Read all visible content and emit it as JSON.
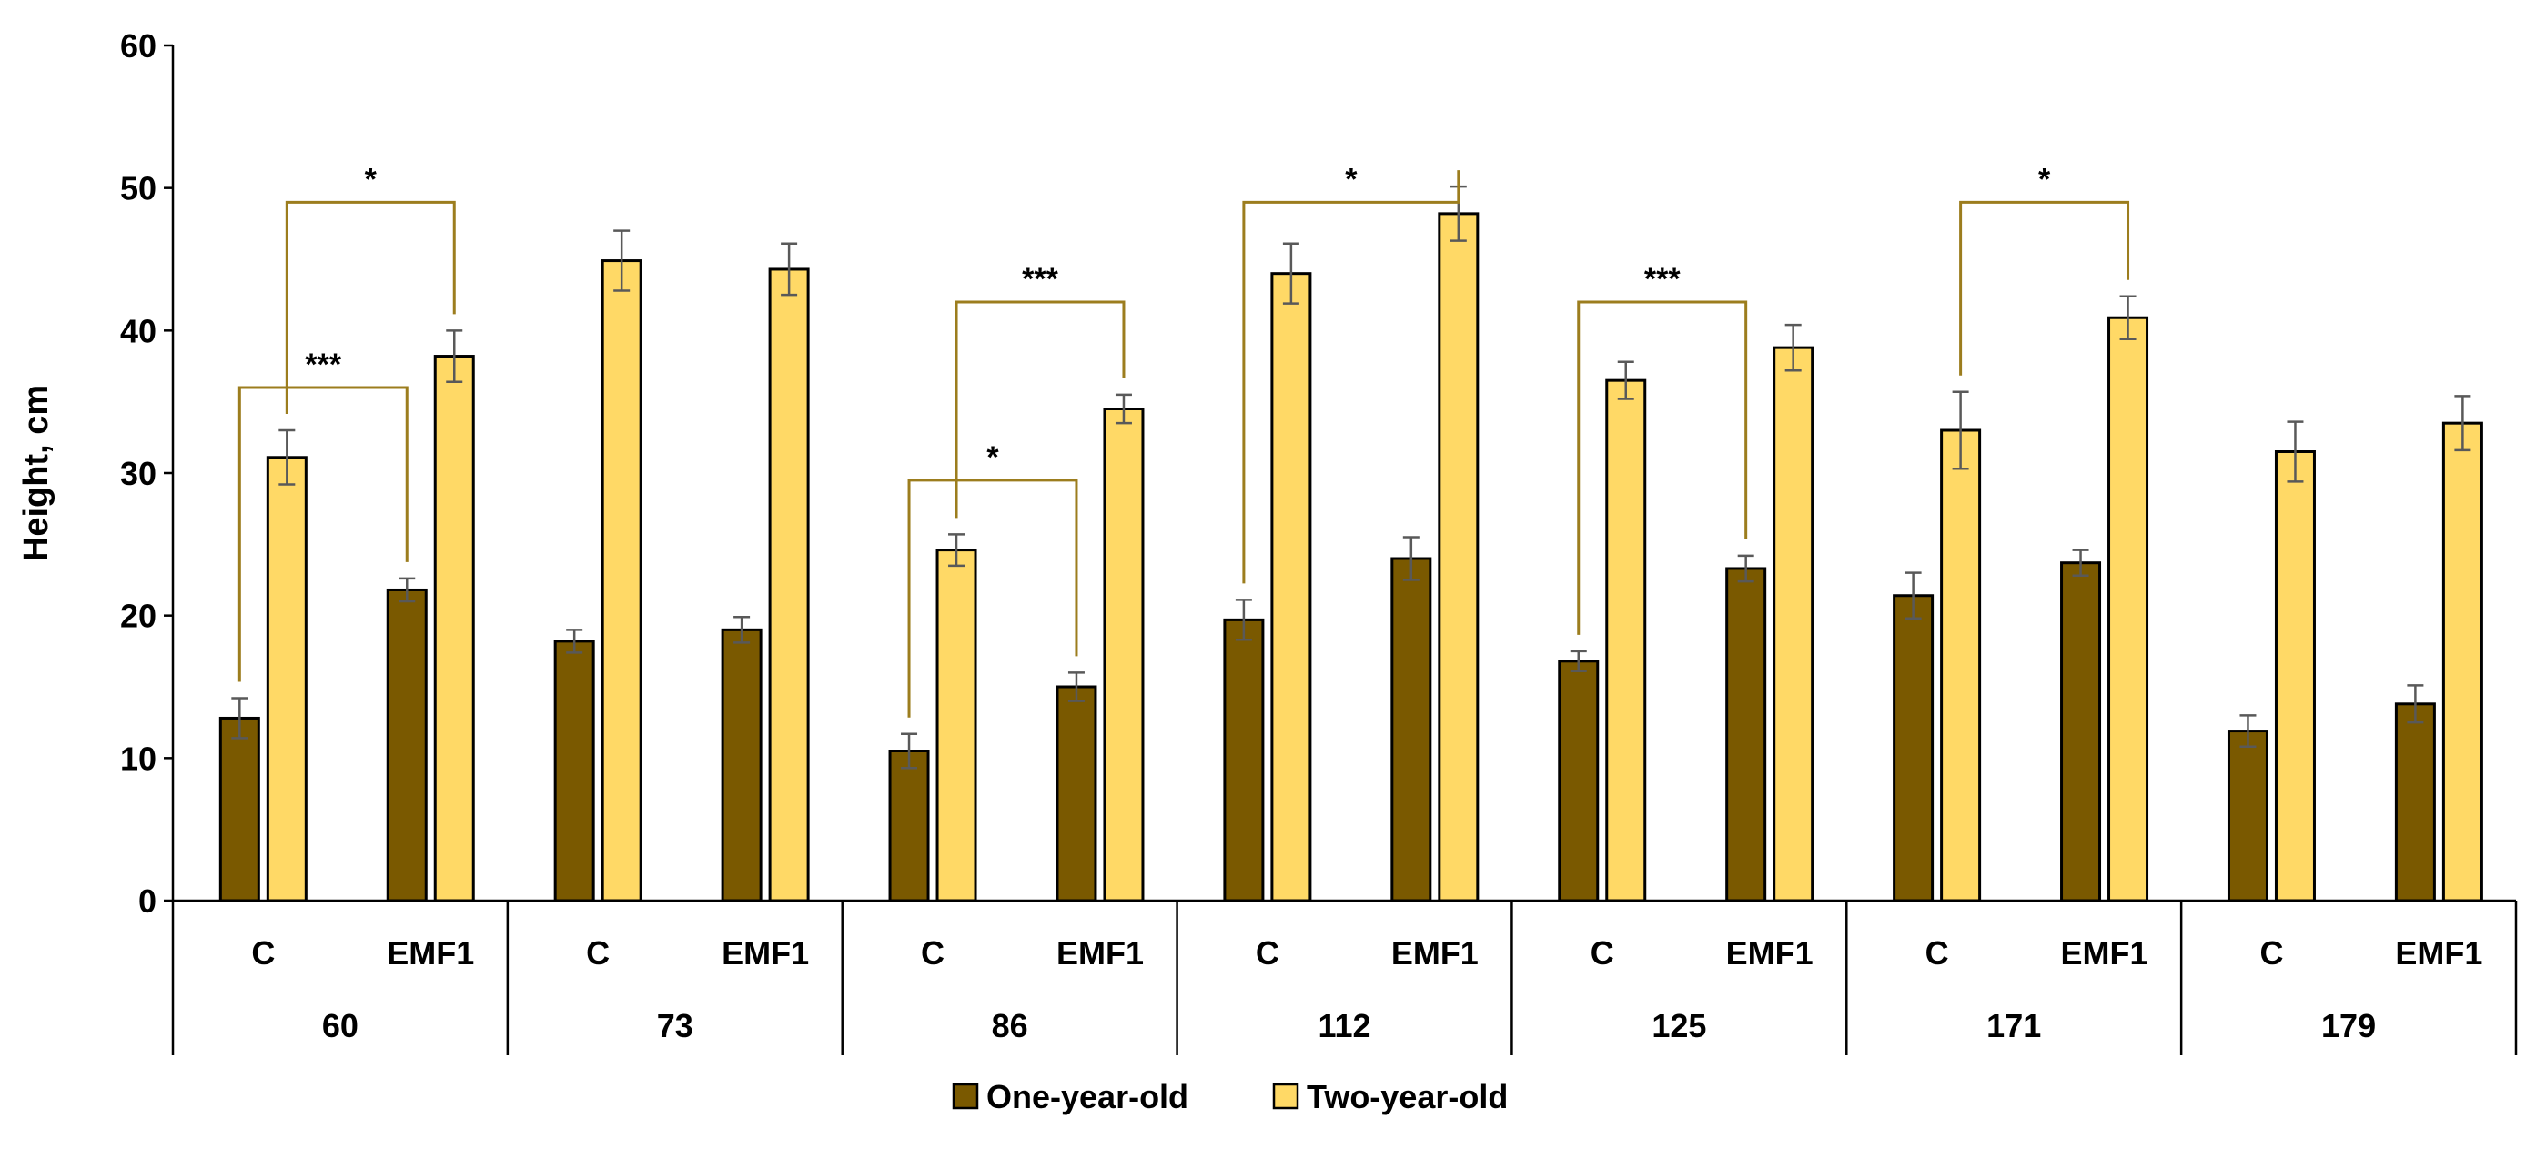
{
  "chart_data": {
    "type": "bar",
    "ylabel": "Height, cm",
    "ylim": [
      0,
      60
    ],
    "yticks": [
      0,
      10,
      20,
      30,
      40,
      50,
      60
    ],
    "subcategories": [
      "C",
      "EMF1"
    ],
    "groups": [
      "60",
      "73",
      "86",
      "112",
      "125",
      "171",
      "179"
    ],
    "series": [
      {
        "name": "One-year-old",
        "color": "#7a5900",
        "values": [
          [
            12.8,
            21.8
          ],
          [
            18.2,
            19.0
          ],
          [
            10.5,
            15.0
          ],
          [
            19.7,
            24.0
          ],
          [
            16.8,
            23.3
          ],
          [
            21.4,
            23.7
          ],
          [
            11.9,
            13.8
          ]
        ],
        "errors": [
          [
            1.4,
            0.8
          ],
          [
            0.8,
            0.9
          ],
          [
            1.2,
            1.0
          ],
          [
            1.4,
            1.5
          ],
          [
            0.7,
            0.9
          ],
          [
            1.6,
            0.9
          ],
          [
            1.1,
            1.3
          ]
        ]
      },
      {
        "name": "Two-year-old",
        "color": "#ffd966",
        "values": [
          [
            31.1,
            38.2
          ],
          [
            44.9,
            44.3
          ],
          [
            24.6,
            34.5
          ],
          [
            44.0,
            48.2
          ],
          [
            36.5,
            38.8
          ],
          [
            33.0,
            40.9
          ],
          [
            31.5,
            33.5
          ]
        ],
        "errors": [
          [
            1.9,
            1.8
          ],
          [
            2.1,
            1.8
          ],
          [
            1.1,
            1.0
          ],
          [
            2.1,
            1.9
          ],
          [
            1.3,
            1.6
          ],
          [
            2.7,
            1.5
          ],
          [
            2.1,
            1.9
          ]
        ]
      }
    ],
    "significance": [
      {
        "group": "60",
        "from_series": 0,
        "to_series": 0,
        "label": "***",
        "level": 36
      },
      {
        "group": "60",
        "from_series": 1,
        "to_series": 1,
        "label": "*",
        "level": 49
      },
      {
        "group": "86",
        "from_series": 0,
        "to_series": 0,
        "label": "*",
        "level": 29.5
      },
      {
        "group": "86",
        "from_series": 1,
        "to_series": 1,
        "label": "***",
        "level": 42
      },
      {
        "group": "112",
        "from_series": 0,
        "to_series": 1,
        "label": "*",
        "level": 49
      },
      {
        "group": "125",
        "from_series": 0,
        "to_series": 0,
        "label": "***",
        "level": 42
      },
      {
        "group": "171",
        "from_series": 1,
        "to_series": 1,
        "label": "*",
        "level": 49
      }
    ],
    "legend": [
      "One-year-old",
      "Two-year-old"
    ],
    "bracket_color": "#9c7d1e",
    "legend_position": "bottom"
  }
}
